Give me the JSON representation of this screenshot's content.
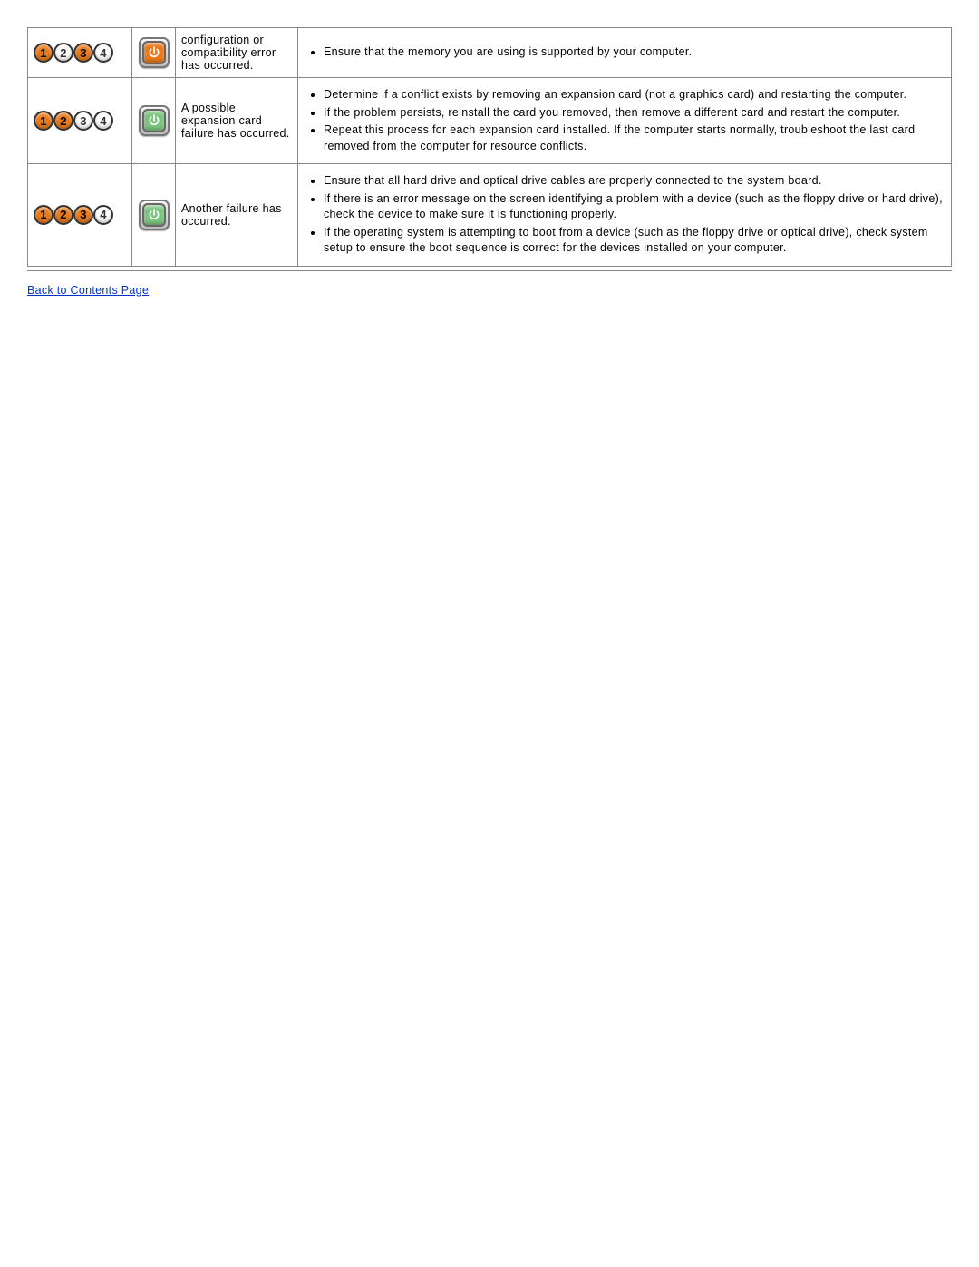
{
  "colors": {
    "led_on": "#e97919",
    "led_off_bg": "#ffffff",
    "led_border": "#333333",
    "power_orange": "#e97919",
    "power_green": "#7bc47f",
    "link": "#0033cc",
    "table_border": "#888888"
  },
  "rows": [
    {
      "leds": [
        {
          "n": "1",
          "on": true
        },
        {
          "n": "2",
          "on": false
        },
        {
          "n": "3",
          "on": true
        },
        {
          "n": "4",
          "on": false
        }
      ],
      "power_color": "orange",
      "description": "configuration or compatibility error has occurred.",
      "steps": [
        "Ensure that the memory you are using is supported by your computer."
      ]
    },
    {
      "leds": [
        {
          "n": "1",
          "on": true
        },
        {
          "n": "2",
          "on": true
        },
        {
          "n": "3",
          "on": false
        },
        {
          "n": "4",
          "on": false
        }
      ],
      "power_color": "green",
      "description": "A possible expansion card failure has occurred.",
      "steps": [
        "Determine if a conflict exists by removing an expansion card (not a graphics card) and restarting the computer.",
        "If the problem persists, reinstall the card you removed, then remove a different card and restart the computer.",
        "Repeat this process for each expansion card installed. If the computer starts normally, troubleshoot the last card removed from the computer for resource conflicts."
      ]
    },
    {
      "leds": [
        {
          "n": "1",
          "on": true
        },
        {
          "n": "2",
          "on": true
        },
        {
          "n": "3",
          "on": true
        },
        {
          "n": "4",
          "on": false
        }
      ],
      "power_color": "green",
      "description": "Another failure has occurred.",
      "steps": [
        "Ensure that all hard drive and optical drive cables are properly connected to the system board.",
        "If there is an error message on the screen identifying a problem with a device (such as the floppy drive or hard drive), check the device to make sure it is functioning properly.",
        "If the operating system is attempting to boot from a device (such as the floppy drive or optical drive), check system setup to ensure the boot sequence is correct for the devices installed on your computer."
      ]
    }
  ],
  "back_link": "Back to Contents Page"
}
